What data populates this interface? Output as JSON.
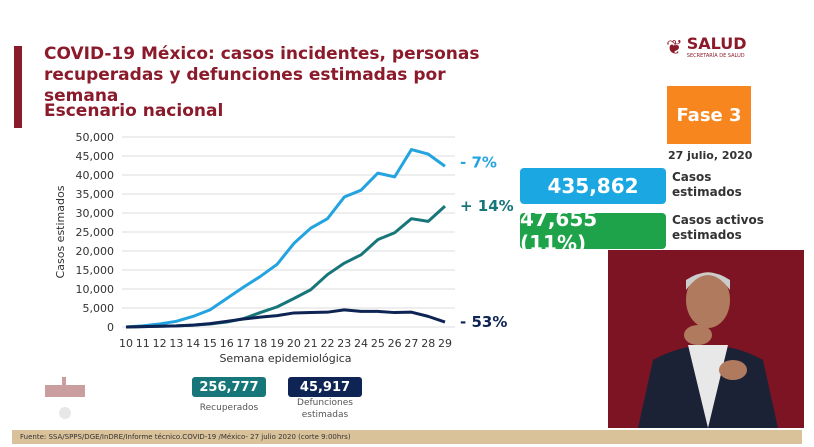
{
  "header": {
    "title": "COVID-19 México: casos incidentes, personas recuperadas y defunciones estimadas por semana",
    "subtitle": "Escenario nacional"
  },
  "logo": {
    "text": "SALUD",
    "subtext": "SECRETARÍA DE SALUD"
  },
  "phase": {
    "label": "Fase 3",
    "color": "#f7861e"
  },
  "date": "27 julio, 2020",
  "kpis": {
    "casos": {
      "value": "435,862",
      "label1": "Casos",
      "label2": "estimados",
      "color": "#1ba7e2"
    },
    "activos": {
      "value": "47,655 (11%)",
      "label1": "Casos activos",
      "label2": "estimados",
      "color": "#1ea34a"
    },
    "recuperados": {
      "value": "256,777",
      "label": "Recuperados",
      "color": "#17767a"
    },
    "defunciones": {
      "value": "45,917",
      "label1": "Defunciones",
      "label2": "estimadas",
      "color": "#0e2454"
    }
  },
  "source": "Fuente: SSA/SPPS/DGE/InDRE/Informe técnico.COVID-19 /México- 27 julio 2020 (corte 9:00hrs)",
  "chart_data": {
    "type": "line",
    "xlabel": "Semana epidemiológica",
    "ylabel": "Casos estimados",
    "ylim": [
      0,
      50000
    ],
    "yticks": [
      "0",
      "5,000",
      "10,000",
      "15,000",
      "20,000",
      "25,000",
      "30,000",
      "35,000",
      "40,000",
      "45,000",
      "50,000"
    ],
    "x": [
      10,
      11,
      12,
      13,
      14,
      15,
      16,
      17,
      18,
      19,
      20,
      21,
      22,
      23,
      24,
      25,
      26,
      27,
      28,
      29
    ],
    "grid": true,
    "series": [
      {
        "color": "#23a3e0",
        "annotation": "- 7%",
        "values": [
          0,
          300,
          800,
          1500,
          2800,
          4500,
          7500,
          10500,
          13300,
          16500,
          22000,
          26000,
          28500,
          34200,
          36000,
          40500,
          39500,
          46700,
          45500,
          42300
        ]
      },
      {
        "color": "#17767a",
        "annotation": "+ 14%",
        "values": [
          0,
          100,
          200,
          300,
          500,
          800,
          1300,
          2200,
          3800,
          5300,
          7500,
          9800,
          13800,
          16800,
          19000,
          23000,
          24800,
          28500,
          27800,
          31800
        ]
      },
      {
        "color": "#0e2454",
        "annotation": "- 53%",
        "values": [
          0,
          100,
          200,
          300,
          500,
          900,
          1500,
          2100,
          2600,
          3000,
          3700,
          3800,
          3900,
          4500,
          4100,
          4100,
          3800,
          3900,
          2800,
          1300
        ]
      }
    ]
  }
}
